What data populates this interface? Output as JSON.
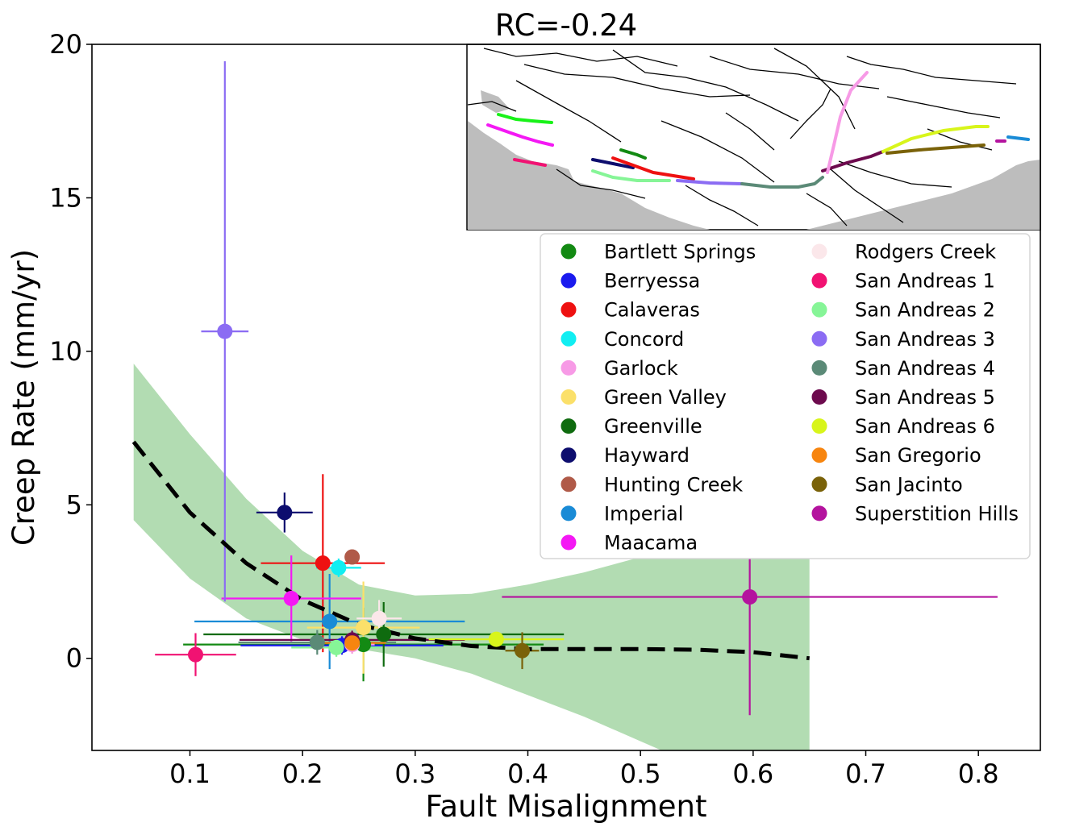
{
  "chart_data": {
    "type": "scatter",
    "title": "RC=-0.24",
    "xlabel": "Fault Misalignment",
    "ylabel": "Creep Rate (mm/yr)",
    "xlim": [
      0.013,
      0.855
    ],
    "ylim": [
      -3.0,
      20.0
    ],
    "xticks": [
      "0.1",
      "0.2",
      "0.3",
      "0.4",
      "0.5",
      "0.6",
      "0.7",
      "0.8"
    ],
    "yticks": [
      "0",
      "5",
      "10",
      "15",
      "20"
    ],
    "grid": false,
    "legend_position": "upper-right",
    "inset": "fault-map-california",
    "series": [
      {
        "name": "Bartlett Springs",
        "color": "#138a13",
        "points": [
          {
            "x": 0.254,
            "y": 0.45,
            "xerr": 0.16,
            "yerr": 1.2
          }
        ]
      },
      {
        "name": "Berryessa",
        "color": "#1a1aee",
        "points": [
          {
            "x": 0.235,
            "y": 0.42,
            "xerr": 0.09,
            "yerr": 0.3
          }
        ]
      },
      {
        "name": "Calaveras",
        "color": "#ee1111",
        "points": [
          {
            "x": 0.218,
            "y": 3.1,
            "xerr": 0.055,
            "yerr": 2.9
          }
        ]
      },
      {
        "name": "Concord",
        "color": "#11eef2",
        "points": [
          {
            "x": 0.232,
            "y": 2.95,
            "xerr": 0.02,
            "yerr": 0.3
          }
        ]
      },
      {
        "name": "Garlock",
        "color": "#f79ae6",
        "points": [
          {
            "x": 0.244,
            "y": 0.45,
            "xerr": 0.02,
            "yerr": 0.3
          }
        ]
      },
      {
        "name": "Green Valley",
        "color": "#fbe06a",
        "points": [
          {
            "x": 0.254,
            "y": 1.0,
            "xerr": 0.05,
            "yerr": 1.5
          }
        ]
      },
      {
        "name": "Greenville",
        "color": "#0f6b0f",
        "points": [
          {
            "x": 0.272,
            "y": 0.78,
            "xerr": 0.16,
            "yerr": 1.05
          }
        ]
      },
      {
        "name": "Hayward",
        "color": "#0d0d6e",
        "points": [
          {
            "x": 0.184,
            "y": 4.75,
            "xerr": 0.025,
            "yerr": 0.65
          }
        ]
      },
      {
        "name": "Hunting Creek",
        "color": "#b05a48",
        "points": [
          {
            "x": 0.244,
            "y": 3.3,
            "xerr": 0.005,
            "yerr": 0.2
          }
        ]
      },
      {
        "name": "Imperial",
        "color": "#1a8bd6",
        "points": [
          {
            "x": 0.224,
            "y": 1.2,
            "xerr": 0.12,
            "yerr": 1.55
          }
        ]
      },
      {
        "name": "Maacama",
        "color": "#f418f4",
        "points": [
          {
            "x": 0.19,
            "y": 1.95,
            "xerr": 0.062,
            "yerr": 1.4
          }
        ]
      },
      {
        "name": "Rodgers Creek",
        "color": "#fbe7ea",
        "points": [
          {
            "x": 0.268,
            "y": 1.3,
            "xerr": 0.02,
            "yerr": 0.6
          }
        ]
      },
      {
        "name": "San Andreas 1",
        "color": "#f11272",
        "points": [
          {
            "x": 0.105,
            "y": 0.12,
            "xerr": 0.036,
            "yerr": 0.7
          }
        ]
      },
      {
        "name": "San Andreas 2",
        "color": "#86f597",
        "points": [
          {
            "x": 0.23,
            "y": 0.35,
            "xerr": 0.04,
            "yerr": 0.3
          }
        ]
      },
      {
        "name": "San Andreas 3",
        "color": "#8b6cf3",
        "points": [
          {
            "x": 0.131,
            "y": 10.65,
            "xerr": 0.021,
            "yerr": 8.8
          }
        ]
      },
      {
        "name": "San Andreas 4",
        "color": "#5b8a77",
        "points": [
          {
            "x": 0.213,
            "y": 0.52,
            "xerr": 0.07,
            "yerr": 0.4
          }
        ]
      },
      {
        "name": "San Andreas 5",
        "color": "#6d0a4e",
        "points": [
          {
            "x": 0.244,
            "y": 0.6,
            "xerr": 0.1,
            "yerr": 0.3
          }
        ]
      },
      {
        "name": "San Andreas 6",
        "color": "#d8f51b",
        "points": [
          {
            "x": 0.372,
            "y": 0.62,
            "xerr": 0.06,
            "yerr": 0.2
          }
        ]
      },
      {
        "name": "San Gregorio",
        "color": "#f7850f",
        "points": [
          {
            "x": 0.244,
            "y": 0.5,
            "xerr": 0.03,
            "yerr": 0.3
          }
        ]
      },
      {
        "name": "San Jacinto",
        "color": "#7a6209",
        "points": [
          {
            "x": 0.395,
            "y": 0.25,
            "xerr": 0.015,
            "yerr": 0.6
          }
        ]
      },
      {
        "name": "Superstition Hills",
        "color": "#b4139e",
        "points": [
          {
            "x": 0.597,
            "y": 2.0,
            "xerr": 0.22,
            "yerr": 3.85
          }
        ]
      }
    ],
    "trend_line": {
      "style": "dashed",
      "color": "#000000",
      "x": [
        0.05,
        0.1,
        0.15,
        0.2,
        0.25,
        0.3,
        0.35,
        0.4,
        0.45,
        0.5,
        0.55,
        0.6,
        0.65
      ],
      "y": [
        7.05,
        4.75,
        3.1,
        1.9,
        1.1,
        0.65,
        0.4,
        0.3,
        0.3,
        0.3,
        0.28,
        0.2,
        0.0
      ]
    },
    "confidence_band": {
      "color": "#b2dcb2",
      "x": [
        0.05,
        0.1,
        0.15,
        0.2,
        0.25,
        0.3,
        0.35,
        0.4,
        0.45,
        0.5,
        0.55,
        0.6,
        0.65
      ],
      "upper": [
        9.6,
        7.3,
        5.2,
        3.5,
        2.4,
        2.05,
        2.1,
        2.4,
        2.8,
        3.3,
        3.8,
        4.2,
        4.55
      ],
      "lower": [
        4.5,
        2.6,
        1.3,
        0.6,
        0.3,
        0.0,
        -0.5,
        -1.2,
        -1.9,
        -2.7,
        -3.5,
        -4.3,
        -5.1
      ]
    }
  }
}
